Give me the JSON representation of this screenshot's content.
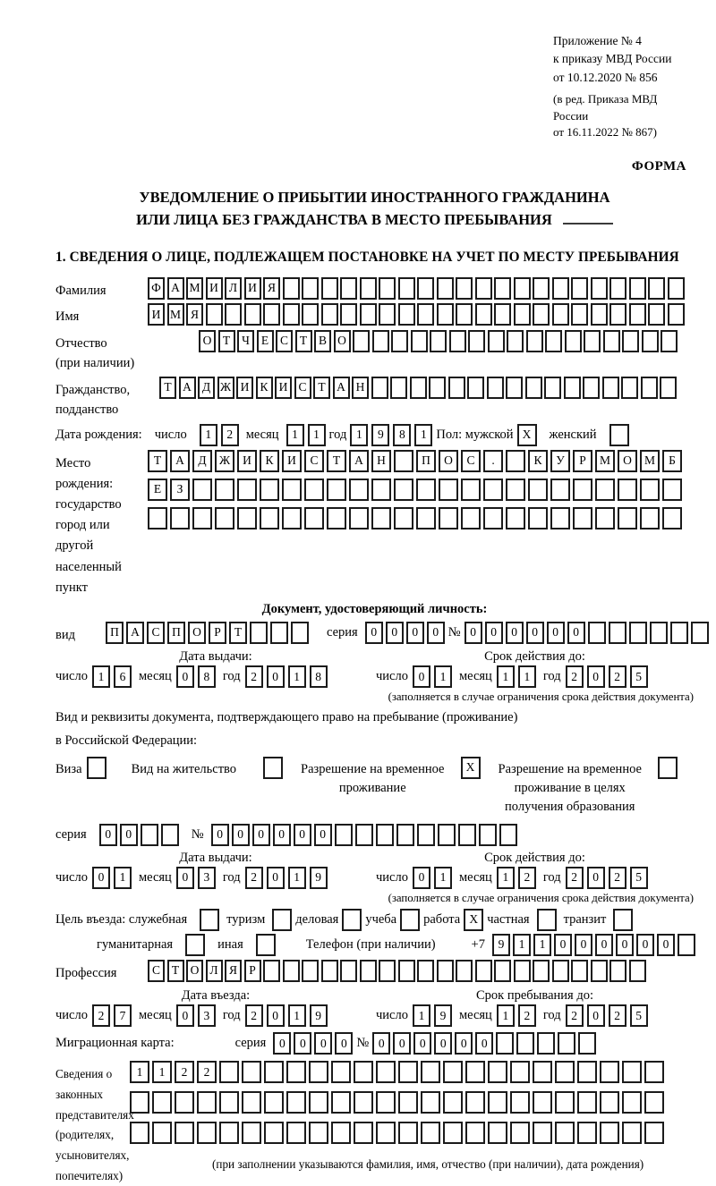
{
  "header": {
    "ref_lines": [
      "Приложение № 4",
      "к приказу МВД России",
      "от 10.12.2020 № 856"
    ],
    "ref_edit_lines": [
      "(в ред. Приказа МВД России",
      "от 16.11.2022 № 867)"
    ],
    "form_label": "ФОРМА"
  },
  "title": {
    "line1": "УВЕДОМЛЕНИЕ О ПРИБЫТИИ ИНОСТРАННОГО ГРАЖДАНИНА",
    "line2": "ИЛИ ЛИЦА БЕЗ ГРАЖДАНСТВА В МЕСТО ПРЕБЫВАНИЯ"
  },
  "section1_heading": "1. СВЕДЕНИЯ О ЛИЦЕ, ПОДЛЕЖАЩЕМ ПОСТАНОВКЕ НА УЧЕТ ПО МЕСТУ ПРЕБЫВАНИЯ",
  "labels": {
    "surname": "Фамилия",
    "name": "Имя",
    "patronymic_l1": "Отчество",
    "patronymic_l2": "(при наличии)",
    "citizenship_l1": "Гражданство,",
    "citizenship_l2": "подданство",
    "birth_date": "Дата рождения:",
    "day": "число",
    "month": "месяц",
    "year": "год",
    "sex": "Пол: мужской",
    "female": "женский",
    "birthplace_l1": "Место рождения:",
    "birthplace_l2": "государство",
    "birthplace_l3": "город или другой",
    "birthplace_l4": "населенный пункт",
    "identity_doc_heading": "Документ, удостоверяющий личность:",
    "doc_type": "вид",
    "series": "серия",
    "number": "№",
    "issue_date": "Дата выдачи:",
    "valid_until": "Срок действия до:",
    "restriction_note": "(заполняется в случае ограничения срока действия документа)",
    "residence_doc_l1": "Вид и реквизиты документа, подтверждающего право на пребывание (проживание)",
    "residence_doc_l2": "в Российской Федерации:",
    "visa": "Виза",
    "residence_permit": "Вид на жительство",
    "temp_permit_l1": "Разрешение на временное",
    "temp_permit_l2": "проживание",
    "edu_permit_l1": "Разрешение на временное",
    "edu_permit_l2": "проживание в целях",
    "edu_permit_l3": "получения образования",
    "purpose": "Цель въезда: служебная",
    "p_tourism": "туризм",
    "p_business": "деловая",
    "p_study": "учеба",
    "p_work": "работа",
    "p_private": "частная",
    "p_transit": "транзит",
    "p_humanitarian": "гуманитарная",
    "p_other": "иная",
    "phone": "Телефон (при наличии)",
    "phone_prefix": "+7",
    "profession": "Профессия",
    "entry_date": "Дата въезда:",
    "stay_until": "Срок пребывания до:",
    "migration_card": "Миграционная карта:",
    "representatives_l1": "Сведения о",
    "representatives_l2": "законных",
    "representatives_l3": "представителях",
    "representatives_l4": "(родителях,",
    "representatives_l5": "усыновителях,",
    "representatives_l6": "попечителях)",
    "representatives_note": "(при заполнении указываются фамилия, имя, отчество (при наличии), дата рождения)"
  },
  "fields": {
    "surname": "ФАМИЛИЯ",
    "name": "ИМЯ",
    "patronymic": "ОТЧЕСТВО",
    "citizenship": "ТАДЖИКИСТАН",
    "birth_date": {
      "day": "12",
      "month": "11",
      "year": "1981"
    },
    "birthplace_row1": "ТАДЖИКИСТАН ПОС. КУРМОМБ",
    "birthplace_row2": "ЕЗ",
    "birthplace_row3": "",
    "doc_type": "ПАСПОРТ",
    "doc_series": "0000",
    "doc_number": "000000",
    "doc_issue": {
      "day": "16",
      "month": "08",
      "year": "2018"
    },
    "doc_expiry": {
      "day": "01",
      "month": "11",
      "year": "2025"
    },
    "permit_series": "00",
    "permit_number": "000000",
    "permit_issue": {
      "day": "01",
      "month": "03",
      "year": "2019"
    },
    "permit_expiry": {
      "day": "01",
      "month": "12",
      "year": "2025"
    },
    "phone_number": "911000000",
    "profession": "СТОЛЯР",
    "entry_date": {
      "day": "27",
      "month": "03",
      "year": "2019"
    },
    "stay_until": {
      "day": "19",
      "month": "12",
      "year": "2025"
    },
    "migration_series": "0000",
    "migration_number": "000000",
    "representatives_row1": "1122",
    "representatives_row2": "",
    "representatives_row3": ""
  },
  "checks": {
    "male": "X",
    "female": "",
    "visa": "",
    "residence_permit": "",
    "temp_residence_permit": "X",
    "edu_residence_permit": "",
    "official": "",
    "tourism": "",
    "business": "",
    "study": "",
    "work": "X",
    "private": "",
    "transit": "",
    "humanitarian": "",
    "other": ""
  }
}
